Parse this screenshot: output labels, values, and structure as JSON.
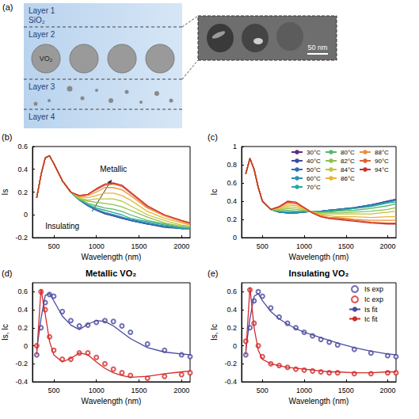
{
  "diagram": {
    "panel_label": "(a)",
    "layers": [
      {
        "label": "Layer 1",
        "material": "SiO₂"
      },
      {
        "label": "Layer 2",
        "material": "VO₂"
      },
      {
        "label": "Layer 3"
      },
      {
        "label": "Layer 4"
      }
    ],
    "inset": {
      "scale_bar": "50 nm"
    }
  },
  "chart_data": [
    {
      "type": "line",
      "panel_label": "(b)",
      "x_label": "Wavelength (nm)",
      "y_label": "Is",
      "annotations": [
        "Metallic",
        "Insulating"
      ],
      "x": [
        300,
        350,
        400,
        450,
        500,
        600,
        700,
        800,
        900,
        1000,
        1100,
        1200,
        1300,
        1400,
        1600,
        1800,
        2000,
        2100
      ],
      "xlim": [
        250,
        2100
      ],
      "xticks": [
        500,
        1000,
        1500,
        2000
      ],
      "ylim": [
        -0.2,
        0.6
      ],
      "yticks": [
        -0.2,
        0,
        0.2,
        0.4,
        0.6
      ],
      "grid": false,
      "series": [
        {
          "name": "30°C",
          "color": "#5b2c83",
          "values": [
            0.15,
            0.35,
            0.5,
            0.52,
            0.45,
            0.3,
            0.2,
            0.13,
            0.08,
            0.04,
            0.01,
            -0.01,
            -0.03,
            -0.05,
            -0.08,
            -0.1,
            -0.12,
            -0.12
          ]
        },
        {
          "name": "40°C",
          "color": "#3f4a9c",
          "values": [
            0.15,
            0.35,
            0.5,
            0.52,
            0.45,
            0.3,
            0.2,
            0.13,
            0.08,
            0.04,
            0.01,
            -0.01,
            -0.03,
            -0.05,
            -0.08,
            -0.11,
            -0.12,
            -0.12
          ]
        },
        {
          "name": "50°C",
          "color": "#2f6db0",
          "values": [
            0.15,
            0.35,
            0.5,
            0.52,
            0.45,
            0.3,
            0.2,
            0.13,
            0.08,
            0.04,
            0.02,
            0.0,
            -0.02,
            -0.05,
            -0.08,
            -0.1,
            -0.12,
            -0.12
          ]
        },
        {
          "name": "60°C",
          "color": "#2a8fb8",
          "values": [
            0.15,
            0.35,
            0.5,
            0.52,
            0.45,
            0.3,
            0.2,
            0.13,
            0.09,
            0.05,
            0.02,
            0.0,
            -0.02,
            -0.04,
            -0.07,
            -0.1,
            -0.12,
            -0.12
          ]
        },
        {
          "name": "70°C",
          "color": "#2aa89a",
          "values": [
            0.15,
            0.35,
            0.5,
            0.52,
            0.45,
            0.3,
            0.2,
            0.13,
            0.09,
            0.06,
            0.04,
            0.02,
            0.0,
            -0.03,
            -0.06,
            -0.09,
            -0.11,
            -0.12
          ]
        },
        {
          "name": "80°C",
          "color": "#55b86a",
          "values": [
            0.15,
            0.35,
            0.5,
            0.52,
            0.45,
            0.3,
            0.2,
            0.14,
            0.1,
            0.08,
            0.06,
            0.05,
            0.03,
            0.0,
            -0.05,
            -0.08,
            -0.11,
            -0.11
          ]
        },
        {
          "name": "82°C",
          "color": "#8cc24a",
          "values": [
            0.15,
            0.35,
            0.5,
            0.52,
            0.45,
            0.3,
            0.2,
            0.14,
            0.12,
            0.11,
            0.1,
            0.09,
            0.07,
            0.04,
            -0.02,
            -0.07,
            -0.1,
            -0.1
          ]
        },
        {
          "name": "84°C",
          "color": "#c4c43c",
          "values": [
            0.15,
            0.35,
            0.5,
            0.52,
            0.45,
            0.3,
            0.2,
            0.15,
            0.13,
            0.14,
            0.14,
            0.14,
            0.12,
            0.08,
            0.0,
            -0.05,
            -0.09,
            -0.1
          ]
        },
        {
          "name": "86°C",
          "color": "#e6b43a",
          "values": [
            0.15,
            0.35,
            0.5,
            0.52,
            0.45,
            0.3,
            0.2,
            0.16,
            0.15,
            0.17,
            0.19,
            0.19,
            0.17,
            0.13,
            0.03,
            -0.03,
            -0.07,
            -0.09
          ]
        },
        {
          "name": "88°C",
          "color": "#ee8d35",
          "values": [
            0.15,
            0.35,
            0.5,
            0.52,
            0.45,
            0.3,
            0.2,
            0.16,
            0.17,
            0.2,
            0.24,
            0.24,
            0.22,
            0.17,
            0.06,
            -0.01,
            -0.06,
            -0.08
          ]
        },
        {
          "name": "90°C",
          "color": "#e4612f",
          "values": [
            0.15,
            0.35,
            0.5,
            0.52,
            0.45,
            0.3,
            0.2,
            0.17,
            0.18,
            0.22,
            0.26,
            0.27,
            0.25,
            0.19,
            0.07,
            0.0,
            -0.05,
            -0.07
          ]
        },
        {
          "name": "94°C",
          "color": "#c9302c",
          "values": [
            0.15,
            0.35,
            0.5,
            0.52,
            0.45,
            0.3,
            0.2,
            0.17,
            0.18,
            0.23,
            0.27,
            0.28,
            0.26,
            0.2,
            0.08,
            0.0,
            -0.05,
            -0.07
          ]
        }
      ]
    },
    {
      "type": "line",
      "panel_label": "(c)",
      "x_label": "Wavelength (nm)",
      "y_label": "Ic",
      "legend": "top-right",
      "x": [
        300,
        350,
        400,
        450,
        500,
        600,
        700,
        800,
        900,
        1000,
        1100,
        1200,
        1300,
        1400,
        1600,
        1800,
        2000,
        2100
      ],
      "xlim": [
        250,
        2100
      ],
      "xticks": [
        500,
        1000,
        1500,
        2000
      ],
      "ylim": [
        0,
        1
      ],
      "yticks": [
        0,
        0.2,
        0.4,
        0.6,
        0.8,
        1
      ],
      "grid": false,
      "series": [
        {
          "name": "30°C",
          "color": "#5b2c83",
          "values": [
            0.7,
            0.87,
            0.75,
            0.55,
            0.4,
            0.31,
            0.28,
            0.27,
            0.27,
            0.28,
            0.29,
            0.29,
            0.3,
            0.31,
            0.33,
            0.36,
            0.4,
            0.42
          ]
        },
        {
          "name": "40°C",
          "color": "#3f4a9c",
          "values": [
            0.7,
            0.87,
            0.75,
            0.55,
            0.4,
            0.31,
            0.28,
            0.27,
            0.27,
            0.28,
            0.29,
            0.29,
            0.3,
            0.31,
            0.33,
            0.36,
            0.4,
            0.42
          ]
        },
        {
          "name": "50°C",
          "color": "#2f6db0",
          "values": [
            0.7,
            0.87,
            0.75,
            0.55,
            0.4,
            0.31,
            0.28,
            0.27,
            0.27,
            0.28,
            0.29,
            0.29,
            0.3,
            0.31,
            0.33,
            0.36,
            0.39,
            0.41
          ]
        },
        {
          "name": "60°C",
          "color": "#2a8fb8",
          "values": [
            0.7,
            0.87,
            0.75,
            0.55,
            0.4,
            0.31,
            0.28,
            0.28,
            0.28,
            0.28,
            0.29,
            0.29,
            0.3,
            0.3,
            0.32,
            0.35,
            0.39,
            0.41
          ]
        },
        {
          "name": "70°C",
          "color": "#2aa89a",
          "values": [
            0.7,
            0.87,
            0.75,
            0.55,
            0.4,
            0.31,
            0.29,
            0.28,
            0.28,
            0.29,
            0.29,
            0.28,
            0.29,
            0.3,
            0.32,
            0.34,
            0.38,
            0.39
          ]
        },
        {
          "name": "80°C",
          "color": "#55b86a",
          "values": [
            0.7,
            0.87,
            0.75,
            0.55,
            0.4,
            0.31,
            0.29,
            0.3,
            0.29,
            0.29,
            0.29,
            0.28,
            0.28,
            0.29,
            0.3,
            0.32,
            0.35,
            0.37
          ]
        },
        {
          "name": "82°C",
          "color": "#8cc24a",
          "values": [
            0.7,
            0.87,
            0.75,
            0.55,
            0.4,
            0.31,
            0.3,
            0.32,
            0.31,
            0.3,
            0.28,
            0.27,
            0.27,
            0.27,
            0.28,
            0.29,
            0.31,
            0.33
          ]
        },
        {
          "name": "84°C",
          "color": "#c4c43c",
          "values": [
            0.7,
            0.87,
            0.75,
            0.55,
            0.4,
            0.31,
            0.31,
            0.34,
            0.33,
            0.31,
            0.28,
            0.26,
            0.26,
            0.26,
            0.26,
            0.26,
            0.28,
            0.29
          ]
        },
        {
          "name": "86°C",
          "color": "#e6b43a",
          "values": [
            0.7,
            0.87,
            0.75,
            0.55,
            0.4,
            0.31,
            0.32,
            0.36,
            0.35,
            0.32,
            0.28,
            0.25,
            0.24,
            0.23,
            0.23,
            0.22,
            0.23,
            0.23
          ]
        },
        {
          "name": "88°C",
          "color": "#ee8d35",
          "values": [
            0.7,
            0.87,
            0.75,
            0.55,
            0.4,
            0.31,
            0.33,
            0.38,
            0.37,
            0.32,
            0.27,
            0.24,
            0.22,
            0.22,
            0.2,
            0.19,
            0.19,
            0.19
          ]
        },
        {
          "name": "90°C",
          "color": "#e4612f",
          "values": [
            0.7,
            0.87,
            0.75,
            0.55,
            0.4,
            0.31,
            0.34,
            0.39,
            0.38,
            0.33,
            0.27,
            0.23,
            0.21,
            0.21,
            0.19,
            0.17,
            0.16,
            0.16
          ]
        },
        {
          "name": "94°C",
          "color": "#c9302c",
          "values": [
            0.7,
            0.87,
            0.75,
            0.55,
            0.4,
            0.31,
            0.34,
            0.4,
            0.39,
            0.33,
            0.27,
            0.23,
            0.21,
            0.2,
            0.18,
            0.16,
            0.15,
            0.15
          ]
        }
      ]
    },
    {
      "type": "line",
      "panel_label": "(d)",
      "title": "Metallic VO₂",
      "x_label": "Wavelength (nm)",
      "y_label": "Is, Ic",
      "x": [
        300,
        350,
        400,
        450,
        500,
        600,
        700,
        800,
        900,
        1000,
        1100,
        1200,
        1300,
        1400,
        1600,
        1800,
        2000,
        2100
      ],
      "xlim": [
        250,
        2100
      ],
      "xticks": [
        500,
        1000,
        1500,
        2000
      ],
      "ylim": [
        -0.4,
        0.7
      ],
      "yticks": [
        -0.4,
        -0.2,
        0,
        0.2,
        0.4,
        0.6
      ],
      "grid": false,
      "series": [
        {
          "name": "Is exp",
          "type": "scatter",
          "marker": "circle_open",
          "color": "#4a4aa0",
          "values": [
            -0.1,
            0.2,
            0.48,
            0.57,
            0.55,
            0.38,
            0.28,
            0.22,
            0.23,
            0.26,
            0.28,
            0.27,
            0.22,
            0.15,
            0.02,
            -0.05,
            -0.1,
            -0.12
          ]
        },
        {
          "name": "Ic exp",
          "type": "scatter",
          "marker": "circle_open",
          "color": "#d42a2a",
          "values": [
            0.0,
            0.6,
            0.4,
            0.1,
            -0.05,
            -0.15,
            -0.15,
            -0.08,
            -0.08,
            -0.13,
            -0.2,
            -0.26,
            -0.3,
            -0.33,
            -0.36,
            -0.34,
            -0.32,
            -0.3
          ]
        },
        {
          "name": "Is fit",
          "type": "line",
          "line_style": "solid",
          "color": "#4a4aa0",
          "values": [
            -0.05,
            0.3,
            0.56,
            0.58,
            0.5,
            0.33,
            0.23,
            0.18,
            0.24,
            0.28,
            0.27,
            0.22,
            0.15,
            0.08,
            -0.02,
            -0.07,
            -0.09,
            -0.1
          ]
        },
        {
          "name": "Ic fit",
          "type": "line",
          "line_style": "solid",
          "color": "#d42a2a",
          "values": [
            -0.1,
            0.63,
            0.35,
            0.05,
            -0.1,
            -0.18,
            -0.14,
            -0.08,
            -0.1,
            -0.18,
            -0.25,
            -0.3,
            -0.33,
            -0.35,
            -0.34,
            -0.31,
            -0.29,
            -0.28
          ]
        }
      ]
    },
    {
      "type": "line",
      "panel_label": "(e)",
      "title": "Insulating VO₂",
      "x_label": "Wavelength (nm)",
      "y_label": "Is, Ic",
      "legend": "top-right",
      "x": [
        300,
        350,
        400,
        450,
        500,
        600,
        700,
        800,
        900,
        1000,
        1100,
        1200,
        1300,
        1400,
        1600,
        1800,
        2000,
        2100
      ],
      "xlim": [
        250,
        2100
      ],
      "xticks": [
        500,
        1000,
        1500,
        2000
      ],
      "ylim": [
        -0.4,
        0.7
      ],
      "yticks": [
        -0.4,
        -0.2,
        0,
        0.2,
        0.4,
        0.6
      ],
      "grid": false,
      "series": [
        {
          "name": "Is exp",
          "type": "scatter",
          "marker": "circle_open",
          "color": "#4a4aa0",
          "values": [
            -0.1,
            0.2,
            0.5,
            0.6,
            0.55,
            0.42,
            0.32,
            0.25,
            0.2,
            0.15,
            0.11,
            0.07,
            0.04,
            0.01,
            -0.04,
            -0.08,
            -0.11,
            -0.12
          ]
        },
        {
          "name": "Ic exp",
          "type": "scatter",
          "marker": "circle_open",
          "color": "#d42a2a",
          "values": [
            0.05,
            0.62,
            0.25,
            0.0,
            -0.12,
            -0.2,
            -0.22,
            -0.24,
            -0.26,
            -0.27,
            -0.28,
            -0.29,
            -0.3,
            -0.3,
            -0.31,
            -0.31,
            -0.3,
            -0.3
          ]
        },
        {
          "name": "Is fit",
          "type": "line",
          "line_style": "solid",
          "color": "#4a4aa0",
          "values": [
            -0.05,
            0.3,
            0.55,
            0.58,
            0.5,
            0.38,
            0.3,
            0.24,
            0.19,
            0.15,
            0.12,
            0.09,
            0.06,
            0.03,
            -0.02,
            -0.06,
            -0.09,
            -0.1
          ]
        },
        {
          "name": "Ic fit",
          "type": "line",
          "line_style": "solid",
          "color": "#d42a2a",
          "values": [
            -0.1,
            0.65,
            0.2,
            -0.05,
            -0.15,
            -0.2,
            -0.22,
            -0.24,
            -0.25,
            -0.26,
            -0.27,
            -0.28,
            -0.29,
            -0.29,
            -0.3,
            -0.3,
            -0.29,
            -0.29
          ]
        }
      ]
    }
  ]
}
